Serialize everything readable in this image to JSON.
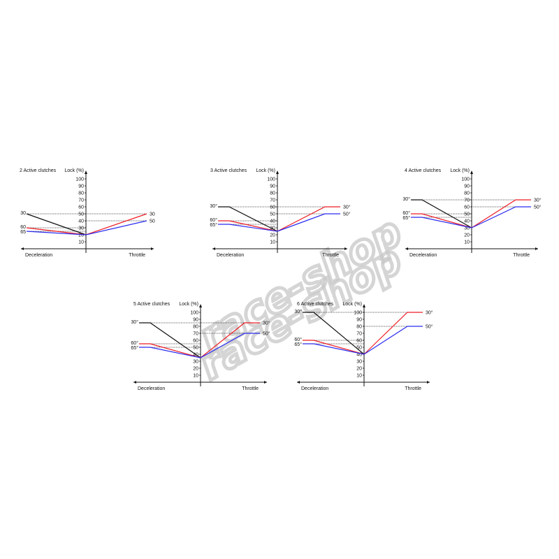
{
  "watermark": "race-shop",
  "colors": {
    "black": "#111111",
    "red": "#ee1c24",
    "blue": "#2b2bf0",
    "axis": "#111111"
  },
  "chart_data": [
    {
      "type": "line",
      "title": "2 Active clutches",
      "ylabel": "Lock (%)",
      "left_label": "Deceleration",
      "right_label": "Throttle",
      "yticks": [
        "10",
        "20",
        "30",
        "40",
        "50",
        "60",
        "70",
        "80",
        "90",
        "100"
      ],
      "ylim": [
        0,
        100
      ],
      "center": 20,
      "decel": [
        {
          "name": "30",
          "color": "black",
          "value": 50
        },
        {
          "name": "60",
          "color": "red",
          "value": 30
        },
        {
          "name": "65",
          "color": "blue",
          "value": 25
        }
      ],
      "throttle": [
        {
          "name": "30",
          "color": "red",
          "value": 50
        },
        {
          "name": "50",
          "color": "blue",
          "value": 40
        }
      ]
    },
    {
      "type": "line",
      "title": "3 Active clutches",
      "ylabel": "Lock (%)",
      "left_label": "Deceleration",
      "right_label": "Throttle",
      "yticks": [
        "10",
        "20",
        "30",
        "40",
        "50",
        "60",
        "70",
        "80",
        "90",
        "100"
      ],
      "ylim": [
        0,
        100
      ],
      "center": 25,
      "decel": [
        {
          "name": "30°",
          "color": "black",
          "value": 60
        },
        {
          "name": "60°",
          "color": "red",
          "value": 40
        },
        {
          "name": "65°",
          "color": "blue",
          "value": 35
        }
      ],
      "throttle": [
        {
          "name": "30°",
          "color": "red",
          "value": 60
        },
        {
          "name": "50°",
          "color": "blue",
          "value": 50
        }
      ]
    },
    {
      "type": "line",
      "title": "4 Active clutches",
      "ylabel": "Lock (%)",
      "left_label": "Deceleration",
      "right_label": "Throttle",
      "yticks": [
        "10",
        "20",
        "30",
        "40",
        "50",
        "60",
        "70",
        "80",
        "90",
        "100"
      ],
      "ylim": [
        0,
        100
      ],
      "center": 30,
      "decel": [
        {
          "name": "30°",
          "color": "black",
          "value": 70
        },
        {
          "name": "60°",
          "color": "red",
          "value": 50
        },
        {
          "name": "65°",
          "color": "blue",
          "value": 45
        }
      ],
      "throttle": [
        {
          "name": "30°",
          "color": "red",
          "value": 70
        },
        {
          "name": "50°",
          "color": "blue",
          "value": 60
        }
      ]
    },
    {
      "type": "line",
      "title": "5 Active clutches",
      "ylabel": "Lock (%)",
      "left_label": "Deceleration",
      "right_label": "Throttle",
      "yticks": [
        "10",
        "20",
        "30",
        "40",
        "50",
        "60",
        "70",
        "80",
        "90",
        "100"
      ],
      "ylim": [
        0,
        100
      ],
      "center": 35,
      "decel": [
        {
          "name": "30°",
          "color": "black",
          "value": 85
        },
        {
          "name": "60°",
          "color": "red",
          "value": 55
        },
        {
          "name": "65°",
          "color": "blue",
          "value": 50
        }
      ],
      "throttle": [
        {
          "name": "30°",
          "color": "red",
          "value": 85
        },
        {
          "name": "50°",
          "color": "blue",
          "value": 70
        }
      ]
    },
    {
      "type": "line",
      "title": "6 Active clutches",
      "ylabel": "Lock (%)",
      "left_label": "Deceleration",
      "right_label": "Throttle",
      "yticks": [
        "10",
        "20",
        "30",
        "40",
        "50",
        "60",
        "70",
        "80",
        "90",
        "100"
      ],
      "ylim": [
        0,
        100
      ],
      "center": 40,
      "decel": [
        {
          "name": "30°",
          "color": "black",
          "value": 100
        },
        {
          "name": "60°",
          "color": "red",
          "value": 60
        },
        {
          "name": "65°",
          "color": "blue",
          "value": 55
        }
      ],
      "throttle": [
        {
          "name": "30°",
          "color": "red",
          "value": 100
        },
        {
          "name": "50°",
          "color": "blue",
          "value": 80
        }
      ]
    }
  ]
}
